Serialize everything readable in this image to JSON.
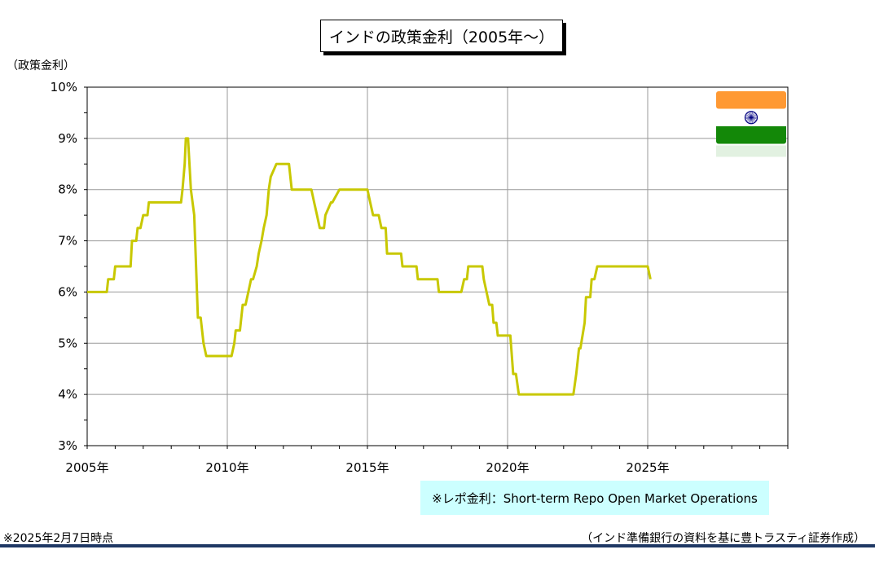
{
  "chart_data": {
    "type": "line",
    "title": "インドの政策金利（2005年～）",
    "ylabel": "（政策金利）",
    "xlabel": "",
    "xlim": [
      2005.0,
      2030.0
    ],
    "ylim": [
      3,
      10
    ],
    "y_ticks": [
      "3%",
      "4%",
      "5%",
      "6%",
      "7%",
      "8%",
      "9%",
      "10%"
    ],
    "y_tick_values": [
      3,
      4,
      5,
      6,
      7,
      8,
      9,
      10
    ],
    "x_ticks": [
      "2005年",
      "2010年",
      "2015年",
      "2020年",
      "2025年"
    ],
    "x_tick_values": [
      2005,
      2010,
      2015,
      2020,
      2025
    ],
    "grid": true,
    "line_color": "#c8c800",
    "series": [
      {
        "x": [
          2005.0,
          2005.7,
          2005.75,
          2005.95,
          2006.0,
          2006.25,
          2006.3,
          2006.55,
          2006.6,
          2006.75,
          2006.8,
          2006.9,
          2007.0,
          2007.15,
          2007.2,
          2008.35,
          2008.4,
          2008.48,
          2008.52,
          2008.6,
          2008.7,
          2008.82,
          2008.95,
          2009.05,
          2009.15,
          2009.25,
          2010.15,
          2010.25,
          2010.3,
          2010.45,
          2010.55,
          2010.65,
          2010.75,
          2010.85,
          2010.92,
          2011.05,
          2011.12,
          2011.22,
          2011.3,
          2011.4,
          2011.48,
          2011.55,
          2011.75,
          2011.8,
          2012.2,
          2012.3,
          2013.0,
          2013.1,
          2013.2,
          2013.3,
          2013.45,
          2013.5,
          2013.7,
          2013.75,
          2014.0,
          2014.05,
          2015.0,
          2015.1,
          2015.2,
          2015.4,
          2015.5,
          2015.65,
          2015.7,
          2016.2,
          2016.25,
          2016.75,
          2016.8,
          2017.5,
          2017.55,
          2018.35,
          2018.45,
          2018.55,
          2018.6,
          2019.1,
          2019.15,
          2019.25,
          2019.35,
          2019.45,
          2019.5,
          2019.6,
          2019.65,
          2019.8,
          2019.85,
          2020.1,
          2020.2,
          2020.3,
          2020.4,
          2022.35,
          2022.45,
          2022.55,
          2022.6,
          2022.75,
          2022.8,
          2022.95,
          2023.0,
          2023.1,
          2023.2,
          2025.0,
          2025.1
        ],
        "y": [
          6.0,
          6.0,
          6.25,
          6.25,
          6.5,
          6.5,
          6.5,
          6.5,
          7.0,
          7.0,
          7.25,
          7.25,
          7.5,
          7.5,
          7.75,
          7.75,
          8.0,
          8.5,
          9.0,
          9.0,
          8.0,
          7.5,
          5.5,
          5.5,
          5.0,
          4.75,
          4.75,
          5.0,
          5.25,
          5.25,
          5.75,
          5.75,
          6.0,
          6.25,
          6.25,
          6.5,
          6.75,
          7.0,
          7.25,
          7.5,
          8.0,
          8.25,
          8.5,
          8.5,
          8.5,
          8.0,
          8.0,
          7.75,
          7.5,
          7.25,
          7.25,
          7.5,
          7.75,
          7.75,
          8.0,
          8.0,
          8.0,
          7.75,
          7.5,
          7.5,
          7.25,
          7.25,
          6.75,
          6.75,
          6.5,
          6.5,
          6.25,
          6.25,
          6.0,
          6.0,
          6.25,
          6.25,
          6.5,
          6.5,
          6.25,
          6.0,
          5.75,
          5.75,
          5.4,
          5.4,
          5.15,
          5.15,
          5.15,
          5.15,
          4.4,
          4.4,
          4.0,
          4.0,
          4.4,
          4.9,
          4.9,
          5.4,
          5.9,
          5.9,
          6.25,
          6.25,
          6.5,
          6.5,
          6.25
        ]
      }
    ]
  },
  "note": "※レポ金利：Short-term Repo Open Market Operations",
  "as_of": "※2025年2月7日時点",
  "source": "（インド準備銀行の資料を基に豊トラスティ証券作成）",
  "flag": {
    "name": "india-flag",
    "saffron": "#ff9933",
    "white": "#ffffff",
    "green": "#138808",
    "chakra": "#000080"
  }
}
